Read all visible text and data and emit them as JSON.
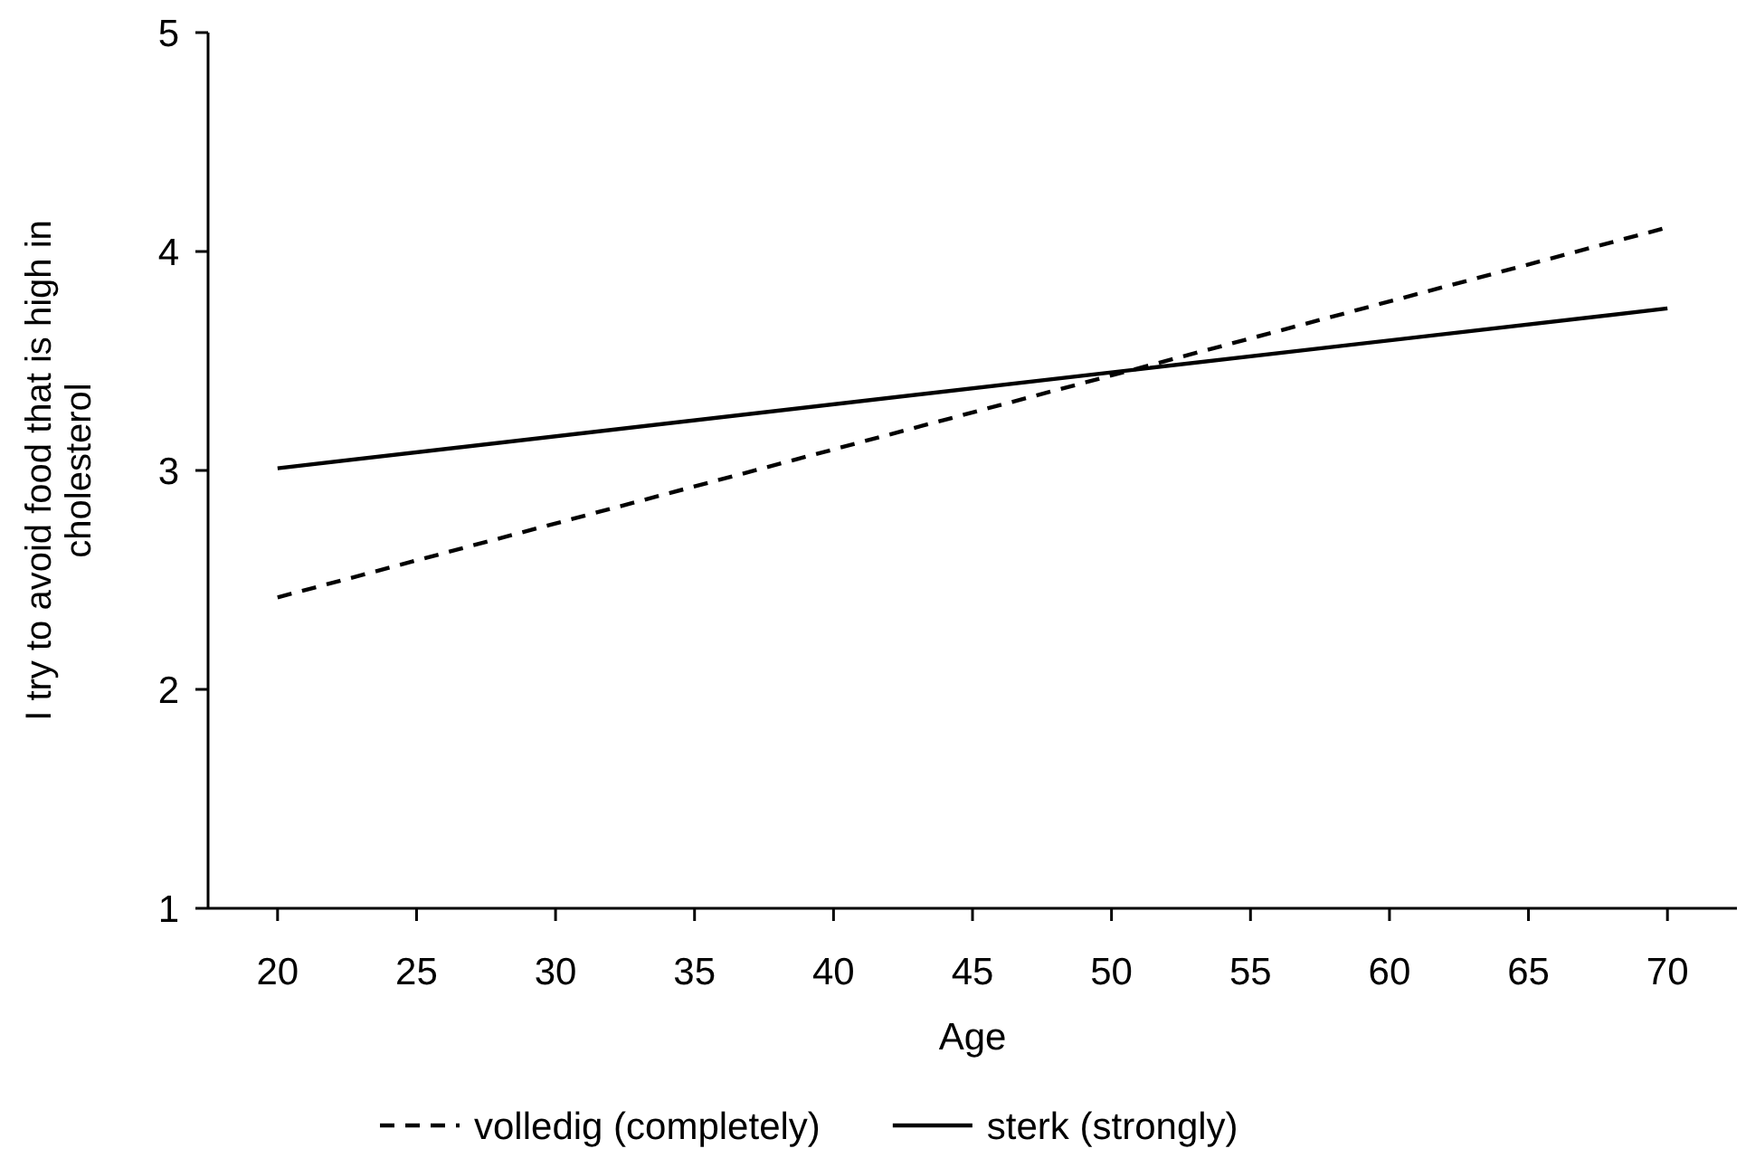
{
  "chart_data": {
    "type": "line",
    "xlabel": "Age",
    "ylabel": "I try to avoid food that is high in cholesterol",
    "x": [
      20,
      70
    ],
    "series": [
      {
        "name": "volledig (completely)",
        "color": "#000000",
        "values": [
          2.42,
          4.11
        ],
        "line_style": "dashed"
      },
      {
        "name": "sterk (strongly)",
        "color": "#000000",
        "values": [
          3.01,
          3.74
        ],
        "line_style": "solid"
      }
    ],
    "xlim": [
      17.5,
      72.5
    ],
    "xticks": [
      20,
      25,
      30,
      35,
      40,
      45,
      50,
      55,
      60,
      65,
      70
    ],
    "ylim": [
      1,
      5
    ],
    "yticks": [
      1,
      2,
      3,
      4,
      5
    ],
    "grid": false,
    "legend": "bottom",
    "marker": "none"
  }
}
